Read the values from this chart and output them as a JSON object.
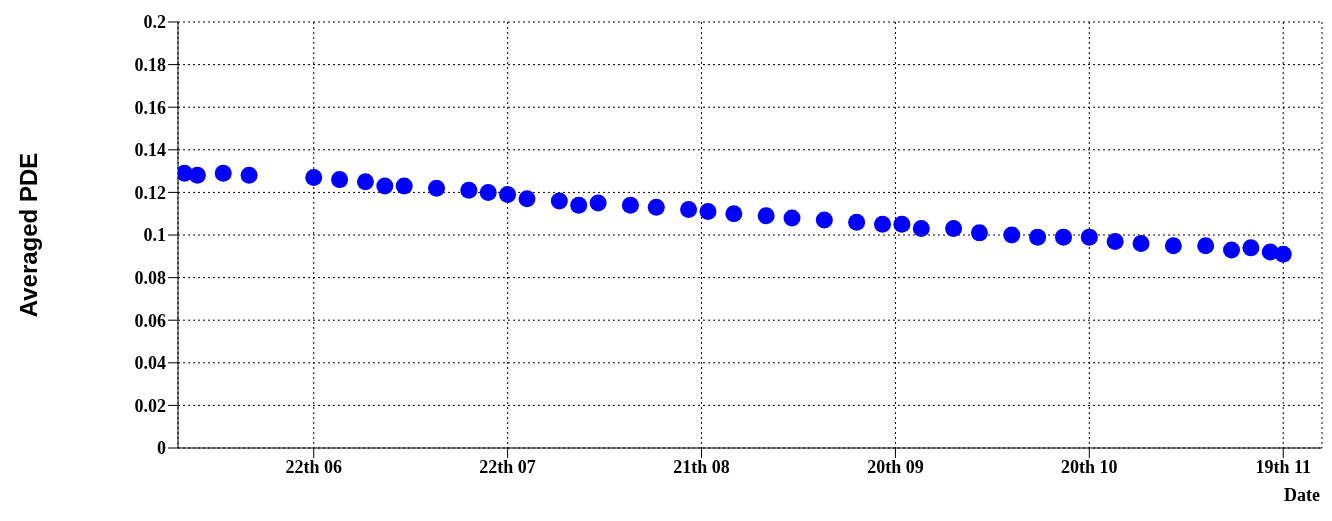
{
  "chart_data": {
    "type": "scatter",
    "ylabel": "Averaged PDE",
    "xlabel": "Date",
    "x": [
      "--06-02",
      "--06-04",
      "--06-08",
      "--06-12",
      "--06-22",
      "--06-26",
      "--06-30",
      "--07-03",
      "--07-06",
      "--07-11",
      "--07-16",
      "--07-19",
      "--07-22",
      "--07-25",
      "--07-30",
      "--08-02",
      "--08-05",
      "--08-10",
      "--08-14",
      "--08-19",
      "--08-22",
      "--08-26",
      "--08-31",
      "--09-04",
      "--09-09",
      "--09-14",
      "--09-18",
      "--09-21",
      "--09-24",
      "--09-29",
      "--10-03",
      "--10-08",
      "--10-12",
      "--10-16",
      "--10-20",
      "--10-24",
      "--10-28",
      "--11-02",
      "--11-07",
      "--11-11",
      "--11-14",
      "--11-17",
      "--11-19"
    ],
    "series": [
      {
        "color": "#0000ff",
        "values": [
          0.129,
          0.128,
          0.129,
          0.128,
          0.127,
          0.126,
          0.125,
          0.123,
          0.123,
          0.122,
          0.121,
          0.12,
          0.119,
          0.117,
          0.116,
          0.114,
          0.115,
          0.114,
          0.113,
          0.112,
          0.111,
          0.11,
          0.109,
          0.108,
          0.107,
          0.106,
          0.105,
          0.105,
          0.103,
          0.103,
          0.101,
          0.1,
          0.099,
          0.099,
          0.099,
          0.097,
          0.096,
          0.095,
          0.095,
          0.093,
          0.094,
          0.092,
          0.091
        ]
      }
    ],
    "xlim": [
      "--06-01",
      "--11-25"
    ],
    "xticks": [
      {
        "value": "--06-22",
        "label": "22th 06"
      },
      {
        "value": "--07-22",
        "label": "22th 07"
      },
      {
        "value": "--08-21",
        "label": "21th 08"
      },
      {
        "value": "--09-20",
        "label": "20th 09"
      },
      {
        "value": "--10-20",
        "label": "20th 10"
      },
      {
        "value": "--11-19",
        "label": "19th 11"
      }
    ],
    "ylim": [
      0,
      0.2
    ],
    "yticks": [
      0,
      0.02,
      0.04,
      0.06,
      0.08,
      0.1,
      0.12,
      0.14,
      0.16,
      0.18,
      0.2
    ],
    "grid": true,
    "marker": "circle",
    "legend": false
  }
}
